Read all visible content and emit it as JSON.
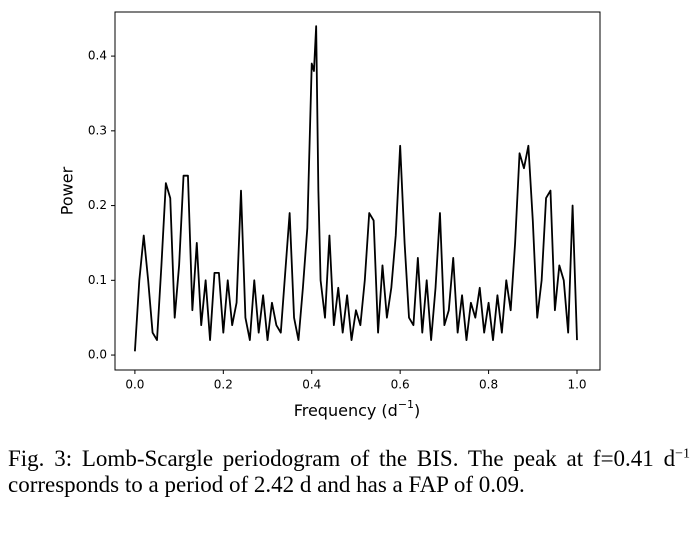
{
  "chart_data": {
    "type": "line",
    "x_label": [
      "Frequency (d",
      "−1",
      ")"
    ],
    "y_label": "Power",
    "x": [
      0.0,
      0.01,
      0.02,
      0.03,
      0.04,
      0.05,
      0.06,
      0.07,
      0.08,
      0.09,
      0.1,
      0.11,
      0.12,
      0.13,
      0.14,
      0.15,
      0.16,
      0.17,
      0.18,
      0.19,
      0.2,
      0.21,
      0.22,
      0.23,
      0.24,
      0.25,
      0.26,
      0.27,
      0.28,
      0.29,
      0.3,
      0.31,
      0.32,
      0.33,
      0.34,
      0.35,
      0.36,
      0.37,
      0.38,
      0.39,
      0.4,
      0.405,
      0.41,
      0.415,
      0.42,
      0.43,
      0.44,
      0.45,
      0.46,
      0.47,
      0.48,
      0.49,
      0.5,
      0.51,
      0.52,
      0.53,
      0.54,
      0.55,
      0.56,
      0.57,
      0.58,
      0.59,
      0.6,
      0.61,
      0.62,
      0.63,
      0.64,
      0.65,
      0.66,
      0.67,
      0.68,
      0.69,
      0.7,
      0.71,
      0.72,
      0.73,
      0.74,
      0.75,
      0.76,
      0.77,
      0.78,
      0.79,
      0.8,
      0.81,
      0.82,
      0.83,
      0.84,
      0.85,
      0.86,
      0.87,
      0.88,
      0.89,
      0.9,
      0.91,
      0.92,
      0.93,
      0.94,
      0.95,
      0.96,
      0.97,
      0.98,
      0.99,
      1.0
    ],
    "series": [
      {
        "color": "#000000",
        "values": [
          0.005,
          0.1,
          0.16,
          0.1,
          0.03,
          0.02,
          0.12,
          0.23,
          0.21,
          0.05,
          0.12,
          0.24,
          0.24,
          0.06,
          0.15,
          0.04,
          0.1,
          0.02,
          0.11,
          0.11,
          0.03,
          0.1,
          0.04,
          0.07,
          0.22,
          0.05,
          0.02,
          0.1,
          0.03,
          0.08,
          0.02,
          0.07,
          0.04,
          0.03,
          0.11,
          0.19,
          0.05,
          0.02,
          0.09,
          0.17,
          0.39,
          0.38,
          0.44,
          0.22,
          0.1,
          0.05,
          0.16,
          0.04,
          0.09,
          0.03,
          0.08,
          0.02,
          0.06,
          0.04,
          0.1,
          0.19,
          0.18,
          0.03,
          0.12,
          0.05,
          0.09,
          0.16,
          0.28,
          0.15,
          0.05,
          0.04,
          0.13,
          0.03,
          0.1,
          0.02,
          0.09,
          0.19,
          0.04,
          0.06,
          0.13,
          0.03,
          0.08,
          0.02,
          0.07,
          0.05,
          0.09,
          0.03,
          0.07,
          0.02,
          0.08,
          0.03,
          0.1,
          0.06,
          0.15,
          0.27,
          0.25,
          0.28,
          0.18,
          0.05,
          0.1,
          0.21,
          0.22,
          0.06,
          0.12,
          0.1,
          0.03,
          0.2,
          0.02
        ]
      }
    ],
    "xlim": [
      -0.045,
      1.052
    ],
    "ylim": [
      -0.02,
      0.459
    ],
    "xticks": [
      {
        "value": 0,
        "label": "0.0"
      },
      0.2,
      0.4,
      0.6,
      0.8,
      {
        "value": 1,
        "label": "1.0"
      }
    ],
    "yticks": [
      {
        "value": 0,
        "label": "0.0"
      },
      0.1,
      0.2,
      0.3,
      0.4
    ],
    "caption": [
      "Fig. 3: Lomb-Scargle periodogram of the BIS. The peak at f=0.41 d",
      "−1",
      " corresponds to a period of 2.42 d and has a FAP of 0.09."
    ]
  }
}
